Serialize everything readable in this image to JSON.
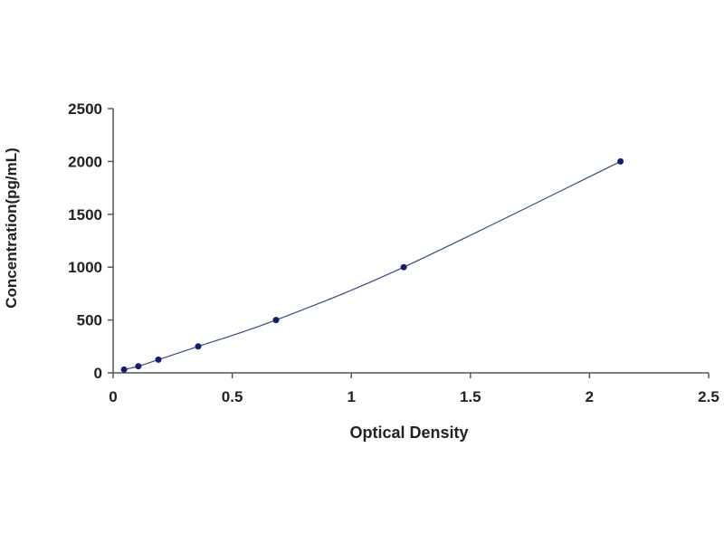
{
  "chart_data": {
    "type": "scatter",
    "title": "",
    "xlabel": "Optical Density",
    "ylabel": "Concentration(pg/mL)",
    "xlim": [
      0,
      2.5
    ],
    "ylim": [
      0,
      2500
    ],
    "xticks": [
      0,
      0.5,
      1,
      1.5,
      2,
      2.5
    ],
    "xtick_labels": [
      "0",
      "0.5",
      "1",
      "1.5",
      "2",
      "2.5"
    ],
    "yticks": [
      0,
      500,
      1000,
      1500,
      2000,
      2500
    ],
    "ytick_labels": [
      "0",
      "500",
      "1000",
      "1500",
      "2000",
      "2500"
    ],
    "grid": false,
    "trendline": "smooth curve through points",
    "series": [
      {
        "x": [
          0.046,
          0.106,
          0.19,
          0.357,
          0.684,
          1.22,
          2.13
        ],
        "y": [
          31.25,
          62.5,
          125,
          250,
          500,
          1000,
          2000
        ]
      }
    ],
    "colors": {
      "marker": "#1a1a6e",
      "line": "#3a4a7a",
      "axis": "#555555"
    }
  }
}
